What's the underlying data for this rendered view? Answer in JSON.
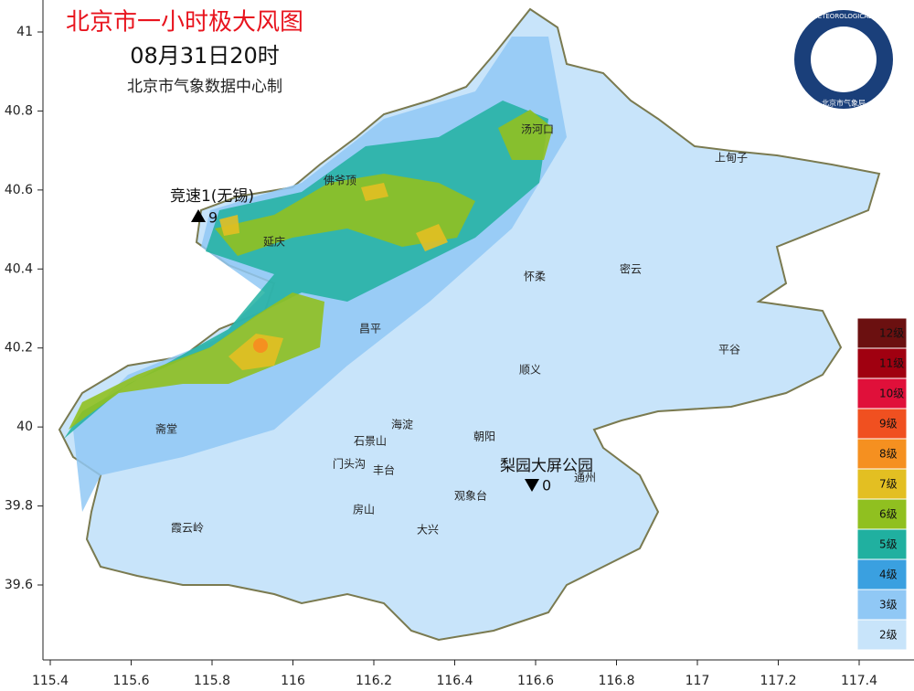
{
  "header": {
    "title": "北京市一小时极大风图",
    "time": "08月31日20时",
    "subtitle": "北京市气象数据中心制"
  },
  "axes": {
    "xticks": [
      115.4,
      115.6,
      115.8,
      116,
      116.2,
      116.4,
      116.6,
      116.8,
      117,
      117.2,
      117.4
    ],
    "yticks": [
      41,
      40.8,
      40.6,
      40.4,
      40.2,
      40,
      39.8,
      39.6
    ]
  },
  "places": [
    "汤河口",
    "上甸子",
    "佛爷顶",
    "延庆",
    "怀柔",
    "密云",
    "昌平",
    "顺义",
    "平谷",
    "海淀",
    "朝阳",
    "石景山",
    "门头沟",
    "丰台",
    "通州",
    "观象台",
    "房山",
    "斋堂",
    "霞云岭",
    "大兴"
  ],
  "stations": [
    {
      "name": "竞速1(无锡)",
      "value": 9
    },
    {
      "name": "梨园大屏公园",
      "value": 0
    }
  ],
  "legend": [
    {
      "label": "12级",
      "color": "#6b1010"
    },
    {
      "label": "11级",
      "color": "#a00010"
    },
    {
      "label": "10级",
      "color": "#e0103a"
    },
    {
      "label": "9级",
      "color": "#f05020"
    },
    {
      "label": "8级",
      "color": "#f59020"
    },
    {
      "label": "7级",
      "color": "#e3bf22"
    },
    {
      "label": "6级",
      "color": "#90c020"
    },
    {
      "label": "5级",
      "color": "#20b0a0"
    },
    {
      "label": "4级",
      "color": "#3aa0e0"
    },
    {
      "label": "3级",
      "color": "#90c8f5"
    },
    {
      "label": "2级",
      "color": "#c8e4fa"
    }
  ],
  "logo": {
    "english": "BEIJING METEOROLOGICAL SERVICE",
    "chinese": "北京市气象局"
  }
}
